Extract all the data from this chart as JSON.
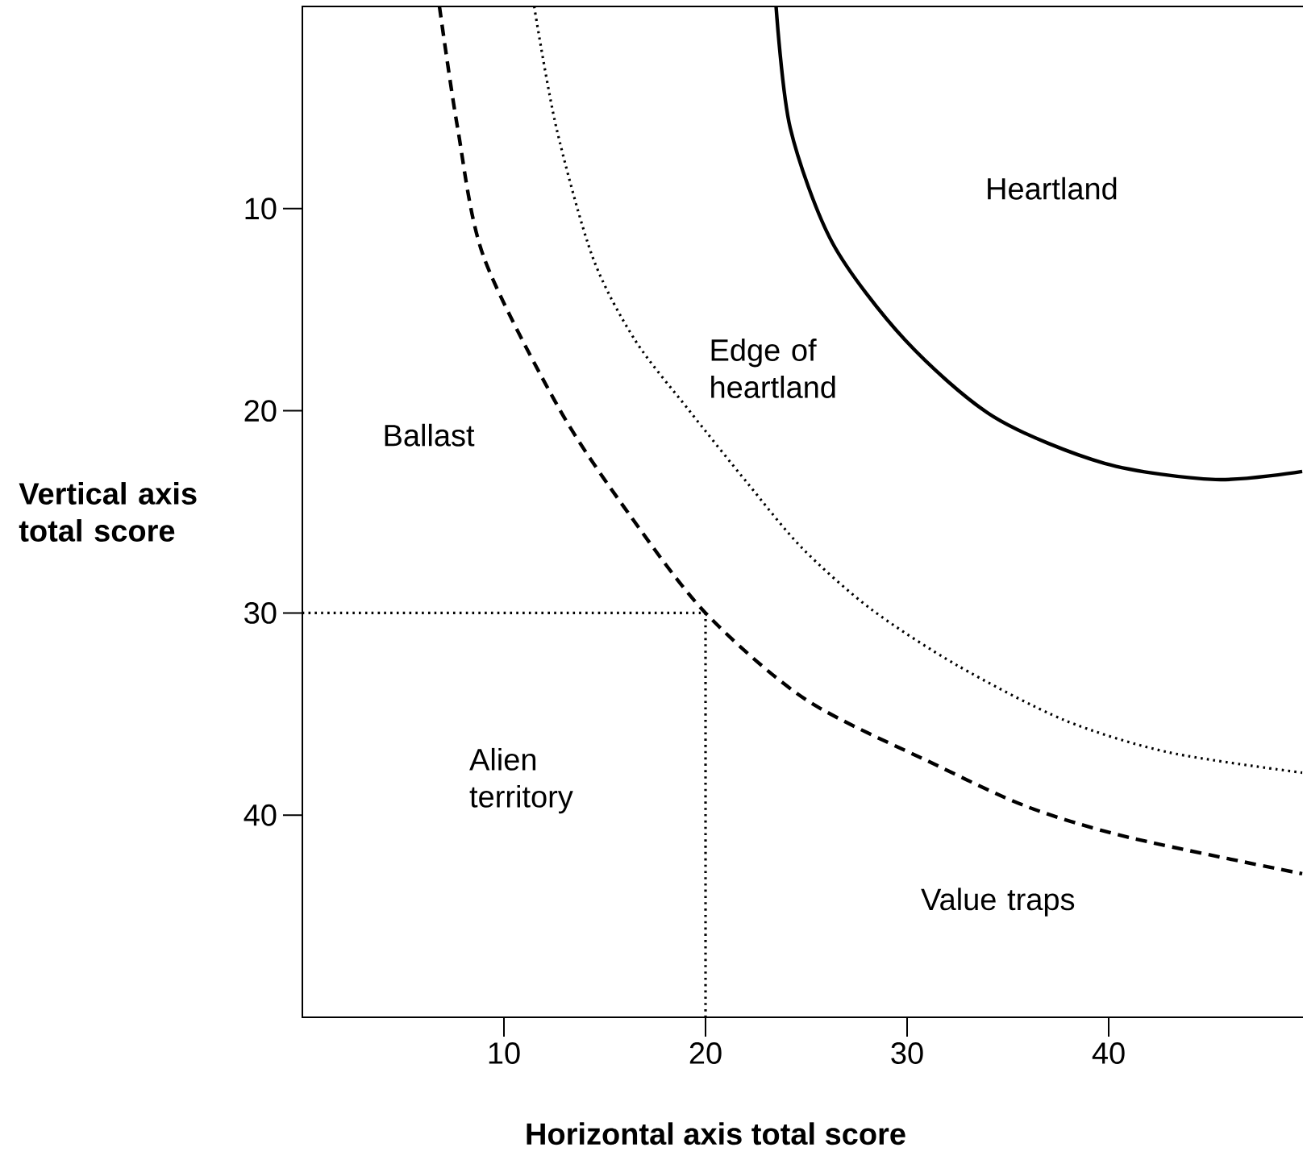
{
  "chart_data": {
    "type": "line",
    "xlabel": "Horizontal axis total score",
    "ylabel": "Vertical axis total score",
    "xlim": [
      0,
      50
    ],
    "ylim": [
      50,
      0
    ],
    "xticks": [
      10,
      20,
      30,
      40
    ],
    "yticks": [
      10,
      20,
      30,
      40
    ],
    "grid": false,
    "marker": "none",
    "series": [
      {
        "color": "#000000",
        "line_style": "solid",
        "x": [
          23.5,
          24.2,
          26.3,
          29.9,
          34.3,
          39.8,
          45.3,
          49.6
        ],
        "values": [
          0,
          6.0,
          11.7,
          16.5,
          20.3,
          22.6,
          23.4,
          23.0
        ]
      },
      {
        "color": "#000000",
        "line_style": "dotted",
        "x": [
          11.5,
          12.6,
          14.4,
          16.5,
          19.2,
          22.1,
          24.8,
          28.2,
          32.5,
          37.8,
          43.0,
          49.6
        ],
        "values": [
          0,
          6.0,
          12.4,
          16.5,
          20.0,
          23.6,
          26.8,
          29.8,
          32.6,
          35.3,
          36.9,
          37.9
        ]
      },
      {
        "color": "#000000",
        "line_style": "dashed",
        "x": [
          6.8,
          7.7,
          9.0,
          12.8,
          16.2,
          20.0,
          25.0,
          31.4,
          36.0,
          41.0,
          49.6
        ],
        "values": [
          0,
          6.0,
          12.4,
          20.0,
          25.1,
          30.0,
          34.3,
          37.5,
          39.6,
          41.1,
          42.9
        ]
      },
      {
        "color": "#000000",
        "line_style": "dotted",
        "x": [
          0,
          20
        ],
        "values": [
          30,
          30
        ]
      },
      {
        "color": "#000000",
        "line_style": "dotted",
        "x": [
          20,
          20
        ],
        "values": [
          30,
          50
        ]
      }
    ],
    "annotations": [
      "Heartland",
      "Edge of heartland",
      "Ballast",
      "Alien territory",
      "Value traps"
    ]
  }
}
